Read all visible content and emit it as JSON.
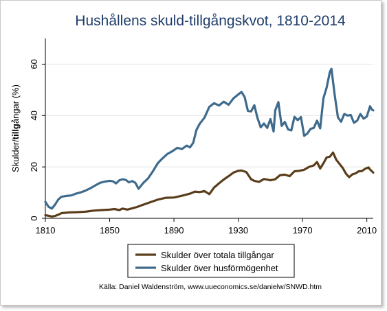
{
  "chart_data": {
    "type": "line",
    "title": "Hushållens skuld-tillgångskvot, 1810-2014",
    "ylabel_normal": "Skulder/",
    "ylabel_bold": "tillg",
    "ylabel_rest": "ångar (%)",
    "xlim": [
      1810,
      2014
    ],
    "ylim": [
      0,
      70
    ],
    "x_ticks": [
      1810,
      1850,
      1890,
      1930,
      1970,
      2010
    ],
    "y_ticks": [
      0,
      20,
      40,
      60
    ],
    "grid": "horizontal",
    "legend_position": "bottom",
    "source": "Källa: Daniel Waldenström, www.uueconomics.se/danielw/SNWD.htm",
    "series": [
      {
        "name": "Skulder över totala tillgångar",
        "color": "#5a3d1a",
        "x": [
          1810,
          1812,
          1814,
          1816,
          1818,
          1820,
          1825,
          1830,
          1835,
          1840,
          1845,
          1850,
          1853,
          1856,
          1858,
          1861,
          1864,
          1867,
          1870,
          1875,
          1880,
          1885,
          1890,
          1895,
          1900,
          1903,
          1906,
          1909,
          1912,
          1915,
          1918,
          1921,
          1924,
          1927,
          1930,
          1932,
          1935,
          1938,
          1940,
          1943,
          1946,
          1950,
          1953,
          1956,
          1959,
          1962,
          1965,
          1968,
          1971,
          1974,
          1977,
          1979,
          1981,
          1983,
          1985,
          1987,
          1989,
          1991,
          1993,
          1995,
          1997,
          1999,
          2001,
          2003,
          2005,
          2007,
          2009,
          2011,
          2012,
          2014
        ],
        "values": [
          1.2,
          1.0,
          0.7,
          0.9,
          1.4,
          2.0,
          2.3,
          2.4,
          2.6,
          3.0,
          3.2,
          3.4,
          3.6,
          3.2,
          3.8,
          3.4,
          3.9,
          4.4,
          5.1,
          6.2,
          7.3,
          8.0,
          8.1,
          8.8,
          9.6,
          10.4,
          10.2,
          10.6,
          9.4,
          12.0,
          13.6,
          15.1,
          16.4,
          17.8,
          18.5,
          18.6,
          18.0,
          15.2,
          14.6,
          14.2,
          15.3,
          14.8,
          15.2,
          16.8,
          17.0,
          16.4,
          18.3,
          18.5,
          18.9,
          20.0,
          20.6,
          21.9,
          19.4,
          21.4,
          23.7,
          24.0,
          25.6,
          22.8,
          21.2,
          19.6,
          17.4,
          16.0,
          17.1,
          17.5,
          18.3,
          18.4,
          19.3,
          19.8,
          19.0,
          17.8
        ]
      },
      {
        "name": "Skulder över husförmögenhet",
        "color": "#3e6a8c",
        "x": [
          1810,
          1812,
          1814,
          1816,
          1818,
          1820,
          1823,
          1826,
          1829,
          1832,
          1835,
          1838,
          1841,
          1844,
          1847,
          1850,
          1852,
          1854,
          1856,
          1858,
          1860,
          1862,
          1864,
          1866,
          1868,
          1871,
          1874,
          1877,
          1880,
          1883,
          1886,
          1889,
          1892,
          1895,
          1898,
          1900,
          1902,
          1904,
          1906,
          1909,
          1912,
          1915,
          1918,
          1921,
          1924,
          1927,
          1930,
          1932,
          1934,
          1936,
          1938,
          1940,
          1942,
          1944,
          1946,
          1948,
          1950,
          1952,
          1953,
          1955,
          1957,
          1959,
          1961,
          1963,
          1965,
          1967,
          1969,
          1971,
          1973,
          1975,
          1977,
          1979,
          1981,
          1983,
          1985,
          1987,
          1988,
          1990,
          1992,
          1994,
          1996,
          1998,
          2000,
          2002,
          2004,
          2006,
          2008,
          2010,
          2012,
          2013,
          2014
        ],
        "values": [
          6.4,
          4.5,
          3.8,
          5.3,
          7.3,
          8.4,
          8.7,
          8.9,
          9.6,
          10.1,
          10.8,
          11.7,
          12.8,
          13.8,
          14.3,
          14.6,
          14.4,
          13.6,
          14.8,
          15.2,
          15.0,
          14.0,
          14.5,
          13.8,
          11.5,
          13.8,
          15.6,
          18.4,
          21.5,
          23.4,
          25.1,
          26.1,
          27.4,
          27.0,
          28.3,
          27.6,
          29.4,
          34.4,
          36.8,
          39.2,
          43.4,
          44.8,
          43.9,
          45.4,
          44.2,
          46.7,
          48.2,
          49.2,
          47.2,
          41.8,
          41.6,
          44.0,
          39.0,
          35.4,
          36.9,
          35.2,
          38.6,
          33.8,
          42.0,
          45.2,
          36.0,
          37.5,
          34.6,
          34.2,
          39.5,
          38.2,
          39.4,
          32.1,
          33.0,
          34.8,
          35.2,
          38.0,
          35.0,
          46.7,
          50.9,
          57.0,
          58.2,
          48.0,
          39.3,
          37.6,
          40.6,
          40.0,
          40.2,
          37.2,
          38.0,
          40.6,
          38.8,
          39.6,
          43.6,
          42.4,
          42.0
        ]
      }
    ]
  }
}
